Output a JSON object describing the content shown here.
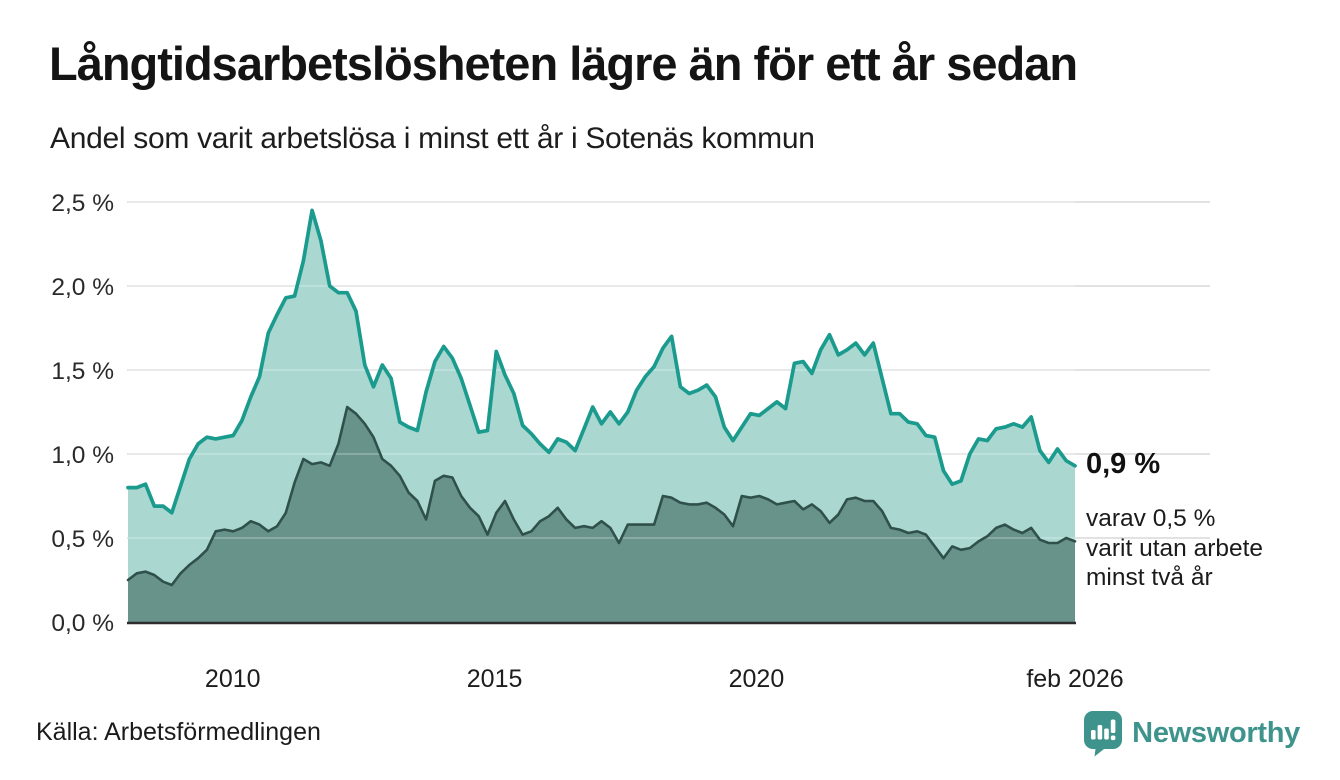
{
  "header": {
    "title": "Långtidsarbetslösheten lägre än för ett år sedan",
    "subtitle": "Andel som varit arbetslösa i minst ett år i Sotenäs kommun"
  },
  "annotations": {
    "end_value": "0,9 %",
    "end_note": "varav 0,5 %\nvarit utan arbete\nminst två år"
  },
  "footer": {
    "source": "Källa: Arbetsförmedlingen",
    "brand": "Newsworthy"
  },
  "colors": {
    "line_1yr": "#1b9a8e",
    "fill_1yr": "#aad8d1",
    "line_2yr": "#30514b",
    "fill_2yr": "#68938a",
    "gridline": "#d9d9d9",
    "gridline_on_fill": "rgba(255,255,255,0.3)",
    "axis_line": "#2d2d2d",
    "tick_text": "#2a2a2a",
    "brand_teal": "#3e948c"
  },
  "chart_data": {
    "type": "area",
    "title": "Långtidsarbetslösheten lägre än för ett år sedan",
    "subtitle": "Andel som varit arbetslösa i minst ett år i Sotenäs kommun",
    "unit": "%",
    "grid": true,
    "legend": "none",
    "start": "2008-01",
    "end": "2026-02",
    "interval_months": 2,
    "xlim_years": [
      2008.0,
      2026.083
    ],
    "ylim": [
      0,
      2.5
    ],
    "x_ticks": [
      {
        "label": "2010",
        "year": 2010
      },
      {
        "label": "2015",
        "year": 2015
      },
      {
        "label": "2020",
        "year": 2020
      },
      {
        "label": "feb 2026",
        "year": 2026.083
      }
    ],
    "y_ticks": [
      {
        "label": "0,0 %",
        "value": 0
      },
      {
        "label": "0,5 %",
        "value": 0.5
      },
      {
        "label": "1,0 %",
        "value": 1.0
      },
      {
        "label": "1,5 %",
        "value": 1.5
      },
      {
        "label": "2,0 %",
        "value": 2.0
      },
      {
        "label": "2,5 %",
        "value": 2.5
      }
    ],
    "series": [
      {
        "name": "Arbetslösa minst ett år",
        "end_label": "0,9 %",
        "values": [
          0.8,
          0.8,
          0.82,
          0.69,
          0.69,
          0.65,
          0.81,
          0.97,
          1.06,
          1.1,
          1.09,
          1.1,
          1.11,
          1.2,
          1.34,
          1.46,
          1.72,
          1.83,
          1.93,
          1.94,
          2.15,
          2.45,
          2.27,
          2.0,
          1.96,
          1.96,
          1.85,
          1.53,
          1.4,
          1.53,
          1.45,
          1.19,
          1.16,
          1.14,
          1.37,
          1.55,
          1.64,
          1.57,
          1.45,
          1.29,
          1.13,
          1.14,
          1.61,
          1.47,
          1.36,
          1.17,
          1.12,
          1.06,
          1.01,
          1.09,
          1.07,
          1.02,
          1.15,
          1.28,
          1.18,
          1.25,
          1.18,
          1.25,
          1.38,
          1.46,
          1.52,
          1.63,
          1.7,
          1.4,
          1.36,
          1.38,
          1.41,
          1.34,
          1.16,
          1.08,
          1.16,
          1.24,
          1.23,
          1.27,
          1.31,
          1.27,
          1.54,
          1.55,
          1.48,
          1.62,
          1.71,
          1.59,
          1.62,
          1.66,
          1.59,
          1.66,
          1.45,
          1.24,
          1.24,
          1.19,
          1.18,
          1.11,
          1.1,
          0.9,
          0.82,
          0.84,
          1.0,
          1.09,
          1.08,
          1.15,
          1.16,
          1.18,
          1.16,
          1.22,
          1.02,
          0.95,
          1.03,
          0.96,
          0.93
        ]
      },
      {
        "name": "Utan arbete minst två år",
        "end_label": "0,5 %",
        "values": [
          0.25,
          0.29,
          0.3,
          0.28,
          0.24,
          0.22,
          0.29,
          0.34,
          0.38,
          0.43,
          0.54,
          0.55,
          0.54,
          0.56,
          0.6,
          0.58,
          0.54,
          0.57,
          0.65,
          0.83,
          0.97,
          0.94,
          0.95,
          0.93,
          1.06,
          1.28,
          1.24,
          1.18,
          1.1,
          0.97,
          0.93,
          0.87,
          0.77,
          0.72,
          0.61,
          0.84,
          0.87,
          0.86,
          0.75,
          0.68,
          0.63,
          0.52,
          0.65,
          0.72,
          0.61,
          0.52,
          0.54,
          0.6,
          0.63,
          0.68,
          0.61,
          0.56,
          0.57,
          0.56,
          0.6,
          0.56,
          0.47,
          0.58,
          0.58,
          0.58,
          0.58,
          0.75,
          0.74,
          0.71,
          0.7,
          0.7,
          0.71,
          0.68,
          0.64,
          0.57,
          0.75,
          0.74,
          0.75,
          0.73,
          0.7,
          0.71,
          0.72,
          0.67,
          0.7,
          0.66,
          0.59,
          0.64,
          0.73,
          0.74,
          0.72,
          0.72,
          0.66,
          0.56,
          0.55,
          0.53,
          0.54,
          0.52,
          0.45,
          0.38,
          0.45,
          0.43,
          0.44,
          0.48,
          0.51,
          0.56,
          0.58,
          0.55,
          0.53,
          0.56,
          0.49,
          0.47,
          0.47,
          0.5,
          0.48
        ]
      }
    ]
  }
}
